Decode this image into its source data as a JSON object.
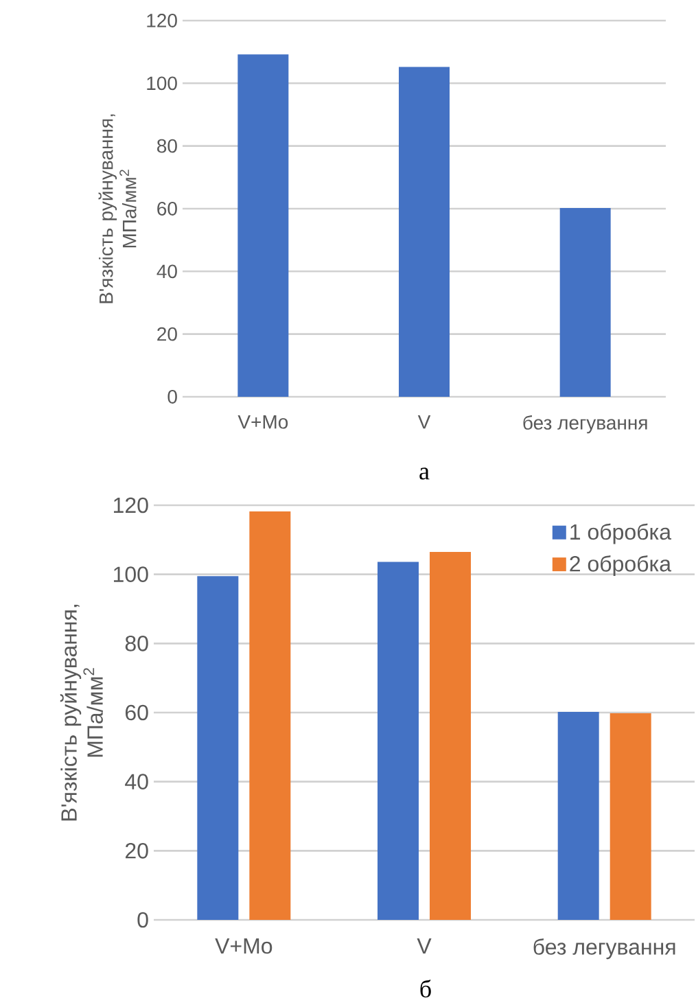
{
  "chart_data": [
    {
      "type": "bar",
      "categories": [
        "V+Mo",
        "V",
        "без легування"
      ],
      "values": [
        109.2,
        105.2,
        60.2
      ],
      "color": "#4472c4",
      "ylabel": "В'язкість руйнування, МПа/мм$^{2}$",
      "ylim": [
        0,
        120
      ],
      "yticks": [
        0,
        20,
        40,
        60,
        80,
        100,
        120
      ],
      "grid": "y",
      "annotations": [
        "а"
      ]
    },
    {
      "type": "bar",
      "categories": [
        "V+Mo",
        "V",
        "без легування"
      ],
      "series": [
        {
          "name": "1 обробка",
          "color": "#4472c4",
          "values": [
            99.5,
            103.6,
            60.2
          ]
        },
        {
          "name": "2 обробка",
          "color": "#ed7d31",
          "values": [
            118.2,
            106.5,
            59.8
          ]
        }
      ],
      "ylabel": "В'язкість руйнування, МПа/мм$^{2}$",
      "ylim": [
        0,
        120
      ],
      "yticks": [
        0,
        20,
        40,
        60,
        80,
        100,
        120
      ],
      "grid": "y",
      "legend": "top right",
      "annotations": [
        "б"
      ]
    }
  ]
}
